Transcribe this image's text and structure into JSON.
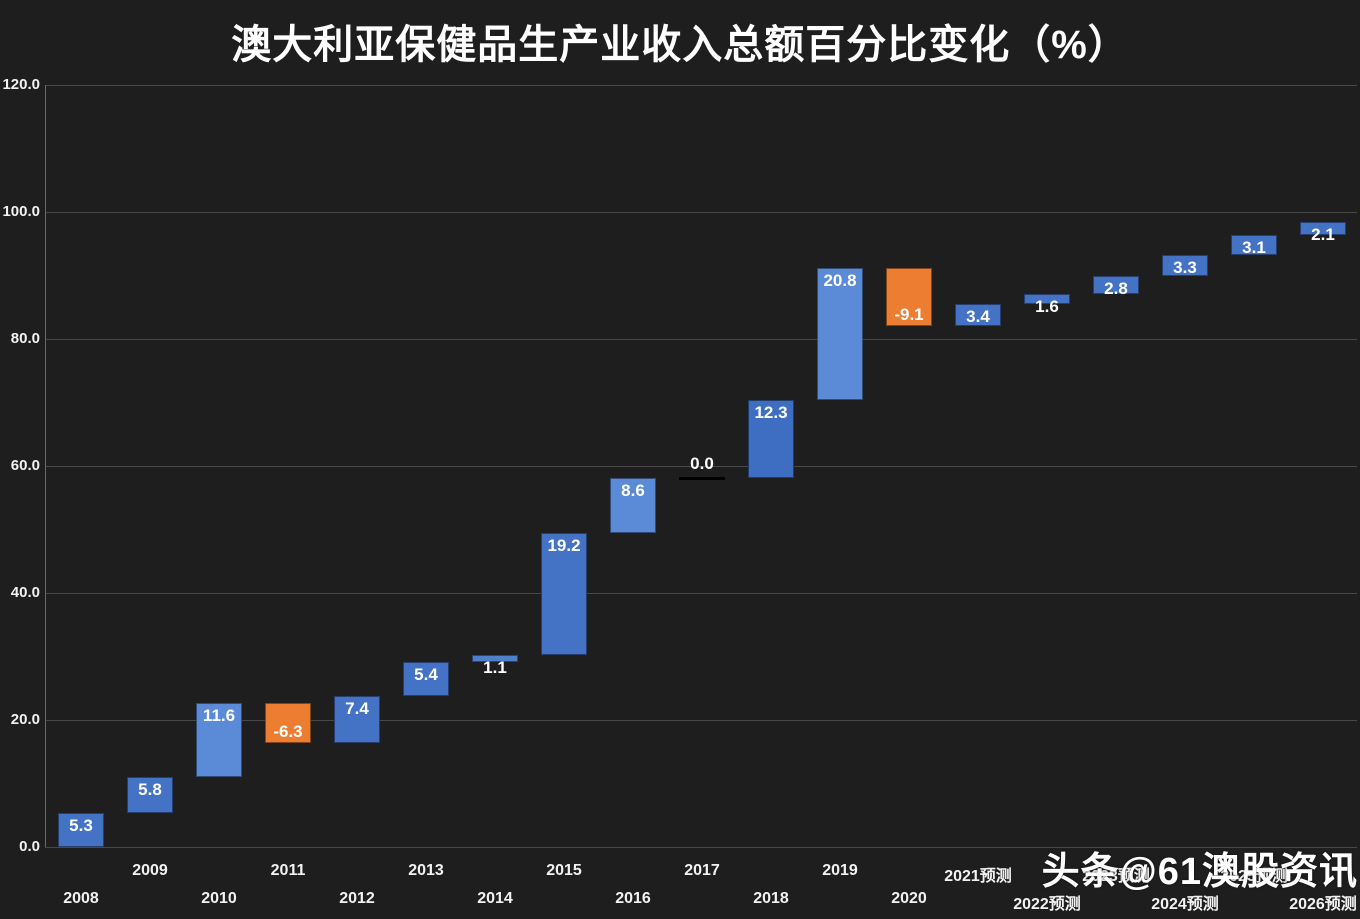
{
  "title": "澳大利亚保健品生产业收入总额百分比变化（%）",
  "watermark": "头条@61澳股资讯",
  "colors": {
    "background": "#1E1E1E",
    "grid": "#484848",
    "axis": "#6a6a6a",
    "text": "#FFFFFF",
    "bar_up": "#4472C4",
    "bar_up_light": "#5B8BD6",
    "bar_down": "#ED7D31"
  },
  "chart_data": {
    "type": "bar",
    "subtype": "waterfall",
    "title": "澳大利亚保健品生产业收入总额百分比变化（%）",
    "xlabel": "",
    "ylabel": "",
    "ylim": [
      0,
      120
    ],
    "ytick_step": 20,
    "grid": true,
    "categories": [
      "2008",
      "2009",
      "2010",
      "2011",
      "2012",
      "2013",
      "2014",
      "2015",
      "2016",
      "2017",
      "2018",
      "2019",
      "2020",
      "2021预测",
      "2022预测",
      "2023预测",
      "2024预测",
      "2025预测",
      "2026预测"
    ],
    "values": [
      5.3,
      5.8,
      11.6,
      -6.3,
      7.4,
      5.4,
      1.1,
      19.2,
      8.6,
      0.0,
      12.3,
      20.8,
      -9.1,
      3.4,
      1.6,
      2.8,
      3.3,
      3.1,
      2.1
    ],
    "bar_colors": [
      "#4472C4",
      "#4472C4",
      "#5B8BD6",
      "#ED7D31",
      "#4472C4",
      "#4472C4",
      "#4D7FCB",
      "#4472C4",
      "#5B8BD6",
      "#000000",
      "#3D6EC2",
      "#5B8BD6",
      "#ED7D31",
      "#4472C4",
      "#4472C4",
      "#4472C4",
      "#4472C4",
      "#4472C4",
      "#4472C4"
    ]
  }
}
